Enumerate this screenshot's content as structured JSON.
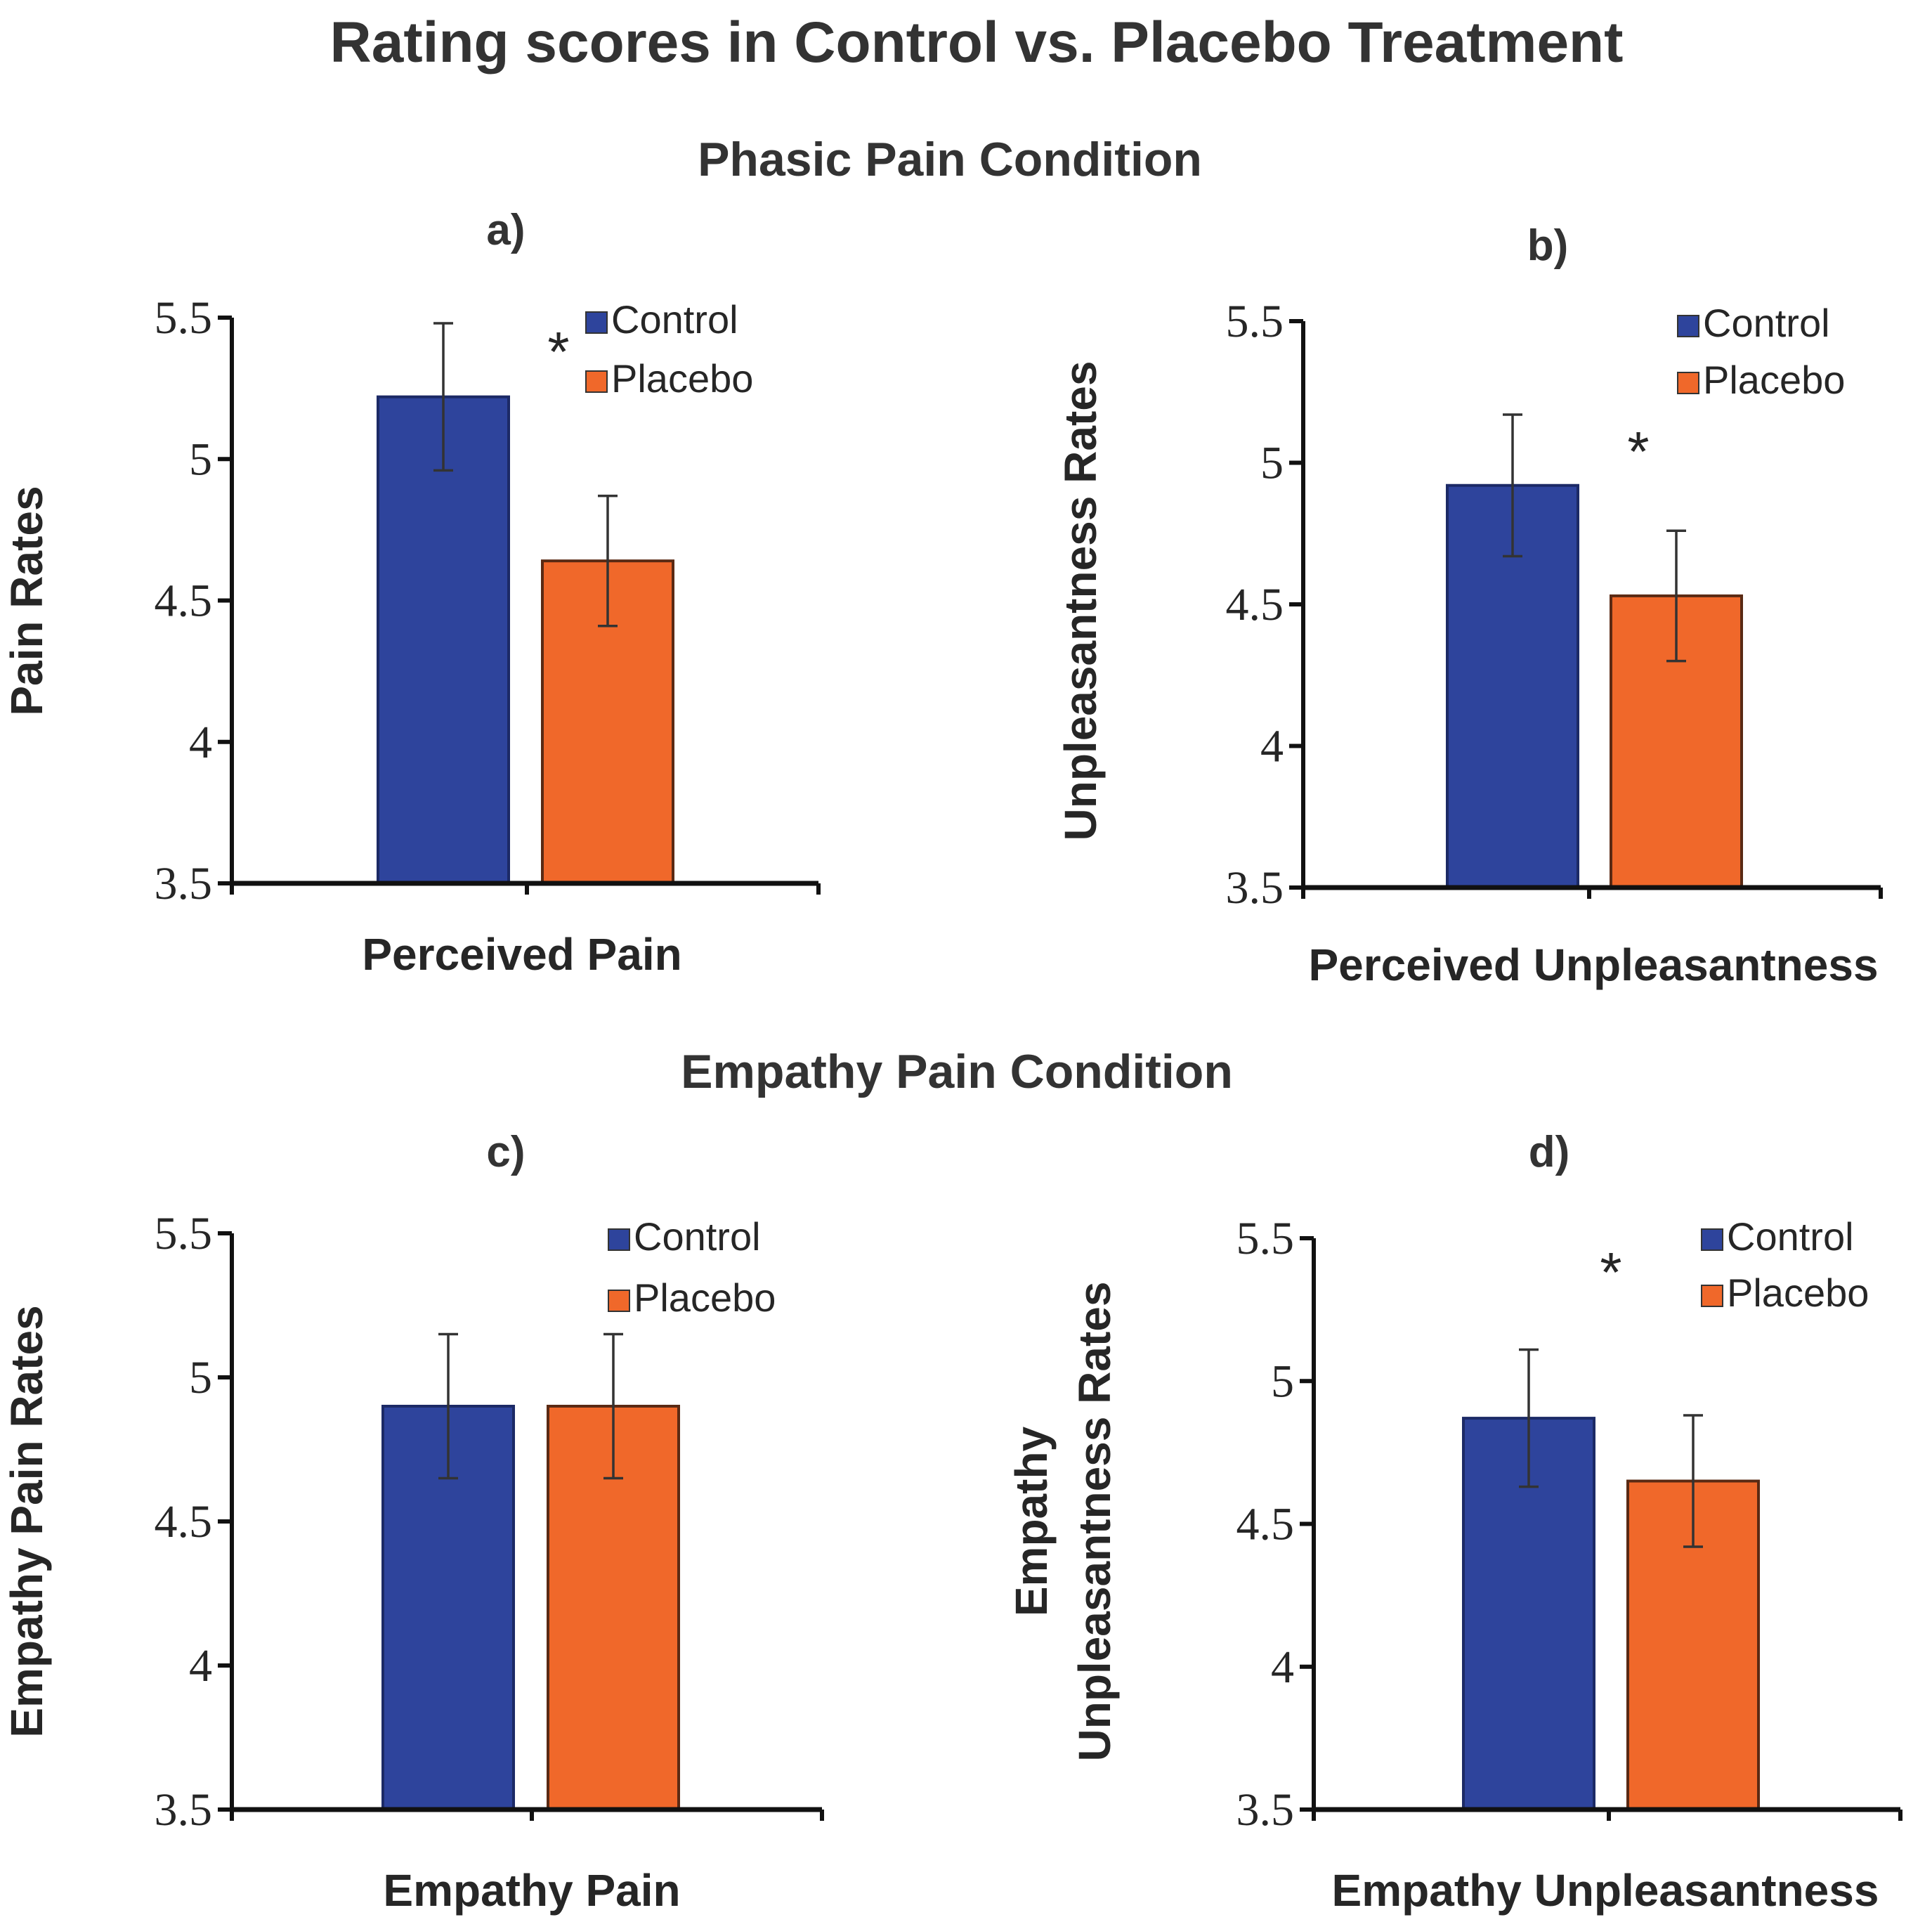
{
  "title": "Rating scores in Control vs. Placebo Treatment",
  "sections": [
    {
      "title": "Phasic Pain Condition"
    },
    {
      "title": "Empathy Pain Condition"
    }
  ],
  "colors": {
    "control": "#2E449C",
    "placebo": "#F0682A",
    "text": "#262626",
    "axis": "#111111",
    "error": "#333333"
  },
  "chart_data": [
    {
      "panel_label": "a)",
      "type": "bar",
      "ylabel": "Pain Rates",
      "xlabel": "Perceived Pain",
      "ylim": [
        3.5,
        5.5
      ],
      "yticks": [
        "3.5",
        "4",
        "4.5",
        "5",
        "5.5"
      ],
      "series": [
        {
          "name": "Control",
          "value": 5.22,
          "error": 0.26
        },
        {
          "name": "Placebo",
          "value": 4.64,
          "error": 0.23
        }
      ],
      "annotation": "*",
      "legend": [
        "Control",
        "Placebo"
      ]
    },
    {
      "panel_label": "b)",
      "type": "bar",
      "ylabel": "Unpleasantness Rates",
      "xlabel": "Perceived Unpleasantness",
      "ylim": [
        3.5,
        5.5
      ],
      "yticks": [
        "3.5",
        "4",
        "4.5",
        "5",
        "5.5"
      ],
      "series": [
        {
          "name": "Control",
          "value": 4.92,
          "error": 0.25
        },
        {
          "name": "Placebo",
          "value": 4.53,
          "error": 0.23
        }
      ],
      "annotation": "*",
      "legend": [
        "Control",
        "Placebo"
      ]
    },
    {
      "panel_label": "c)",
      "type": "bar",
      "ylabel": "Empathy Pain Rates",
      "xlabel": "Empathy Pain",
      "ylim": [
        3.5,
        5.5
      ],
      "yticks": [
        "3.5",
        "4",
        "4.5",
        "5",
        "5.5"
      ],
      "series": [
        {
          "name": "Control",
          "value": 4.9,
          "error": 0.25
        },
        {
          "name": "Placebo",
          "value": 4.9,
          "error": 0.25
        }
      ],
      "annotation": "",
      "legend": [
        "Control",
        "Placebo"
      ]
    },
    {
      "panel_label": "d)",
      "type": "bar",
      "ylabel": "Empathy Unpleasantness Rates",
      "ylabel_lines": [
        "Empathy",
        "Unpleasantness Rates"
      ],
      "xlabel": "Empathy Unpleasantness",
      "ylim": [
        3.5,
        5.5
      ],
      "yticks": [
        "3.5",
        "4",
        "4.5",
        "5",
        "5.5"
      ],
      "series": [
        {
          "name": "Control",
          "value": 4.87,
          "error": 0.24
        },
        {
          "name": "Placebo",
          "value": 4.65,
          "error": 0.23
        }
      ],
      "annotation": "*",
      "legend": [
        "Control",
        "Placebo"
      ]
    }
  ]
}
